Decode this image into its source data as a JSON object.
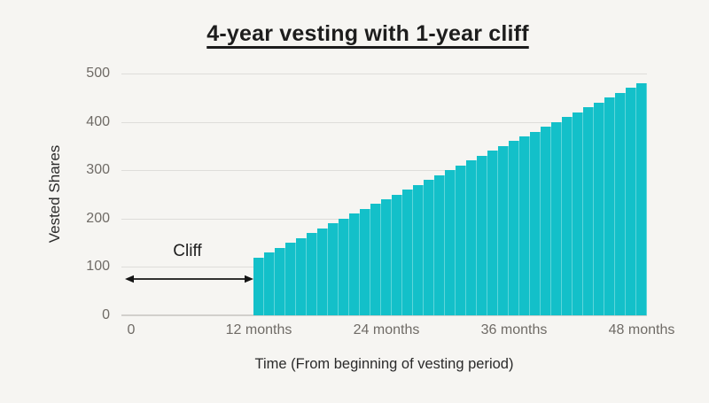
{
  "page": {
    "background_color": "#f6f5f2"
  },
  "chart_data": {
    "type": "bar",
    "title": "4-year vesting with 1-year cliff",
    "xlabel": "Time (From beginning of vesting period)",
    "ylabel": "Vested Shares",
    "ylim": [
      0,
      500
    ],
    "y_ticks": [
      0,
      100,
      200,
      300,
      400,
      500
    ],
    "x_range_months": [
      0,
      48
    ],
    "x_ticks": [
      {
        "month": 0,
        "label": "0"
      },
      {
        "month": 12,
        "label": "12 months"
      },
      {
        "month": 24,
        "label": "24 months"
      },
      {
        "month": 36,
        "label": "36 months"
      },
      {
        "month": 48,
        "label": "48 months"
      }
    ],
    "grid": "horizontal",
    "legend": "none",
    "colors": {
      "bar": "#13c0c9",
      "bar_edge": "#5ed5da",
      "gridline": "#deddda",
      "baseline": "#d2d0cc",
      "tick_text": "#6f6b66",
      "text": "#1d1d1d"
    },
    "series": [
      {
        "name": "Vested Shares",
        "months": [
          12,
          13,
          14,
          15,
          16,
          17,
          18,
          19,
          20,
          21,
          22,
          23,
          24,
          25,
          26,
          27,
          28,
          29,
          30,
          31,
          32,
          33,
          34,
          35,
          36,
          37,
          38,
          39,
          40,
          41,
          42,
          43,
          44,
          45,
          46,
          47,
          48
        ],
        "values": [
          120,
          130,
          140,
          150,
          160,
          170,
          180,
          190,
          200,
          210,
          220,
          230,
          240,
          250,
          260,
          270,
          280,
          290,
          300,
          310,
          320,
          330,
          340,
          350,
          360,
          370,
          380,
          390,
          400,
          410,
          420,
          430,
          440,
          450,
          460,
          470,
          480
        ]
      }
    ],
    "annotations": [
      {
        "type": "double-headed-arrow",
        "label": "Cliff",
        "from_month": 0,
        "to_month": 12,
        "at_value": 75
      }
    ]
  }
}
